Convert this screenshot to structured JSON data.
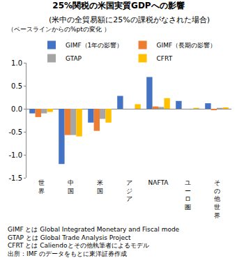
{
  "chart_data": {
    "type": "bar",
    "title": "25%関税の米国実質GDPへの影響",
    "subtitle": "(米中の全貿易額に25%の課税がなされた場合)",
    "ylabel": "（ベースラインからの%ptの変化 ）",
    "categories": [
      "世界",
      "中国",
      "米国",
      "アジア",
      "NAFTA",
      "ユーロ圏",
      "その他世界"
    ],
    "series": [
      {
        "name": "GIMF（1年の影響）",
        "color": "#4472c4",
        "values": [
          -0.1,
          -1.2,
          -0.3,
          0.28,
          0.69,
          0.17,
          0.12
        ]
      },
      {
        "name": "GIMF（長期の影響）",
        "color": "#ed7d31",
        "values": [
          -0.18,
          -0.57,
          -0.48,
          0.0,
          0.05,
          0.0,
          -0.03
        ]
      },
      {
        "name": "GTAP",
        "color": "#a5a5a5",
        "values": [
          -0.1,
          -0.57,
          -0.22,
          0.0,
          0.04,
          0.0,
          0.02
        ]
      },
      {
        "name": "CFRT",
        "color": "#ffc000",
        "values": [
          -0.07,
          -0.6,
          -0.3,
          0.1,
          0.23,
          0.02,
          0.03
        ]
      }
    ],
    "ylim": [
      -1.5,
      1.0
    ],
    "yticks": [
      -1.5,
      {
        "value": -1,
        "label": "-1.0"
      },
      -0.5,
      {
        "value": 0,
        "label": "0.0"
      },
      0.5,
      {
        "value": 1,
        "label": "1.0"
      }
    ],
    "grid": false,
    "legend": "top",
    "annotations": [
      "GIMF とは Global Integrated Monetary and Fiscal mode",
      "GTAP とは Global Trade Analysis Project",
      "CFRT とは Caliendoとその他執筆者によるモデル",
      "出所：IMF のデータをもとに東洋証券作成"
    ]
  }
}
